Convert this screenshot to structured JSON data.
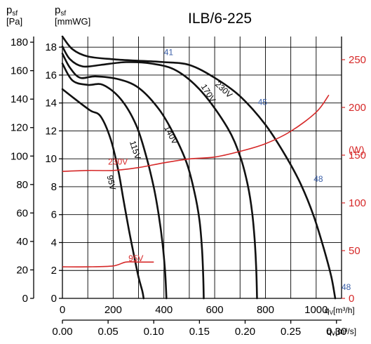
{
  "chart_data": {
    "type": "line",
    "title": "ILB/6-225",
    "axes": {
      "left_outer": {
        "label": "psf",
        "unit": "[Pa]",
        "range": [
          0,
          180
        ],
        "ticks": [
          "0",
          "20",
          "40",
          "60",
          "80",
          "100",
          "120",
          "140",
          "160",
          "180"
        ]
      },
      "left_inner": {
        "label": "psf",
        "unit": "[mmWG]",
        "range": [
          0,
          18.35
        ],
        "ticks": [
          "0",
          "2",
          "4",
          "6",
          "8",
          "10",
          "12",
          "14",
          "16",
          "18"
        ]
      },
      "right": {
        "unit": "[W]",
        "range": [
          0,
          270
        ],
        "ticks": [
          "0",
          "50",
          "100",
          "150",
          "200",
          "250"
        ]
      },
      "x_top": {
        "label": "qv",
        "unit": "[m³/h]",
        "range": [
          0,
          1100
        ],
        "ticks": [
          "0",
          "200",
          "400",
          "600",
          "800",
          "1000"
        ]
      },
      "x_bottom": {
        "label": "qv",
        "unit": "[m³/s]",
        "range": [
          0,
          0.3056
        ],
        "ticks": [
          "0.00",
          "0.05",
          "0.10",
          "0.15",
          "0.20",
          "0.25",
          "0.30"
        ]
      }
    },
    "grid": true,
    "pressure_series": [
      {
        "name": "230V",
        "axis": "Pa",
        "points": [
          [
            0,
            184
          ],
          [
            40,
            175
          ],
          [
            100,
            170
          ],
          [
            200,
            168
          ],
          [
            300,
            167
          ],
          [
            400,
            166
          ],
          [
            500,
            164
          ],
          [
            600,
            155
          ],
          [
            700,
            142
          ],
          [
            800,
            122
          ],
          [
            880,
            100
          ],
          [
            940,
            80
          ],
          [
            990,
            58
          ],
          [
            1030,
            35
          ],
          [
            1060,
            15
          ],
          [
            1075,
            0
          ]
        ]
      },
      {
        "name": "170V",
        "axis": "Pa",
        "points": [
          [
            0,
            177
          ],
          [
            30,
            168
          ],
          [
            80,
            163
          ],
          [
            150,
            164
          ],
          [
            250,
            166
          ],
          [
            350,
            165
          ],
          [
            450,
            160
          ],
          [
            550,
            145
          ],
          [
            650,
            120
          ],
          [
            700,
            100
          ],
          [
            730,
            80
          ],
          [
            748,
            60
          ],
          [
            758,
            40
          ],
          [
            764,
            20
          ],
          [
            767,
            0
          ]
        ]
      },
      {
        "name": "140V",
        "axis": "Pa",
        "points": [
          [
            0,
            172
          ],
          [
            30,
            162
          ],
          [
            70,
            155
          ],
          [
            130,
            156
          ],
          [
            220,
            154
          ],
          [
            300,
            148
          ],
          [
            380,
            133
          ],
          [
            440,
            115
          ],
          [
            490,
            95
          ],
          [
            520,
            75
          ],
          [
            540,
            55
          ],
          [
            550,
            35
          ],
          [
            555,
            15
          ],
          [
            557,
            0
          ]
        ]
      },
      {
        "name": "115V",
        "axis": "Pa",
        "points": [
          [
            0,
            165
          ],
          [
            40,
            153
          ],
          [
            100,
            150
          ],
          [
            160,
            150
          ],
          [
            230,
            140
          ],
          [
            290,
            122
          ],
          [
            330,
            100
          ],
          [
            360,
            78
          ],
          [
            380,
            58
          ],
          [
            395,
            38
          ],
          [
            405,
            18
          ],
          [
            410,
            0
          ]
        ]
      },
      {
        "name": "95V",
        "axis": "Pa",
        "points": [
          [
            0,
            147
          ],
          [
            50,
            140
          ],
          [
            110,
            132
          ],
          [
            150,
            128
          ],
          [
            190,
            112
          ],
          [
            220,
            90
          ],
          [
            240,
            70
          ],
          [
            260,
            50
          ],
          [
            280,
            32
          ],
          [
            300,
            15
          ],
          [
            315,
            5
          ],
          [
            320,
            0
          ]
        ]
      }
    ],
    "power_series": [
      {
        "name": "230V",
        "axis": "W",
        "points": [
          [
            0,
            133
          ],
          [
            100,
            134
          ],
          [
            200,
            134
          ],
          [
            300,
            137
          ],
          [
            400,
            142
          ],
          [
            500,
            146
          ],
          [
            600,
            148
          ],
          [
            700,
            154
          ],
          [
            800,
            162
          ],
          [
            900,
            175
          ],
          [
            1000,
            195
          ],
          [
            1050,
            213
          ]
        ]
      },
      {
        "name": "95V",
        "axis": "W",
        "points": [
          [
            0,
            33
          ],
          [
            100,
            33
          ],
          [
            200,
            34
          ],
          [
            250,
            38
          ],
          [
            300,
            38
          ],
          [
            350,
            38
          ],
          [
            360,
            38
          ]
        ]
      }
    ],
    "annotations": [
      {
        "text": "41",
        "x": 400,
        "y_pa": 171
      },
      {
        "text": "45",
        "x": 770,
        "y_pa": 136
      },
      {
        "text": "48",
        "x": 990,
        "y_pa": 82
      },
      {
        "text": "48",
        "x": 1100,
        "y_pa": 6
      }
    ]
  }
}
